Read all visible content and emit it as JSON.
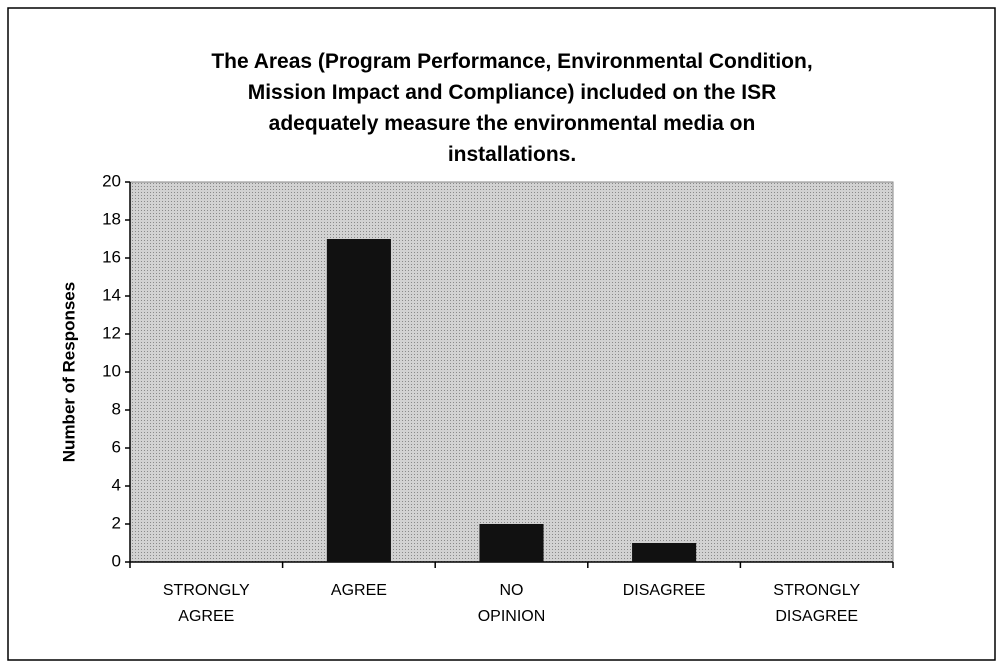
{
  "chart_data": {
    "type": "bar",
    "title": [
      "The Areas (Program Performance, Environmental Condition,",
      "Mission Impact and Compliance) included on the ISR",
      "adequately measure the environmental media on",
      "installations."
    ],
    "y_label": "Number of Responses",
    "categories": [
      "STRONGLY AGREE",
      "AGREE",
      "NO OPINION",
      "DISAGREE",
      "STRONGLY DISAGREE"
    ],
    "values": [
      0,
      17,
      2,
      1,
      0
    ],
    "color": "#111111",
    "ylim": [
      0,
      20
    ],
    "yticks": [
      0,
      2,
      4,
      6,
      8,
      10,
      12,
      14,
      16,
      18,
      20
    ],
    "grid": false
  }
}
